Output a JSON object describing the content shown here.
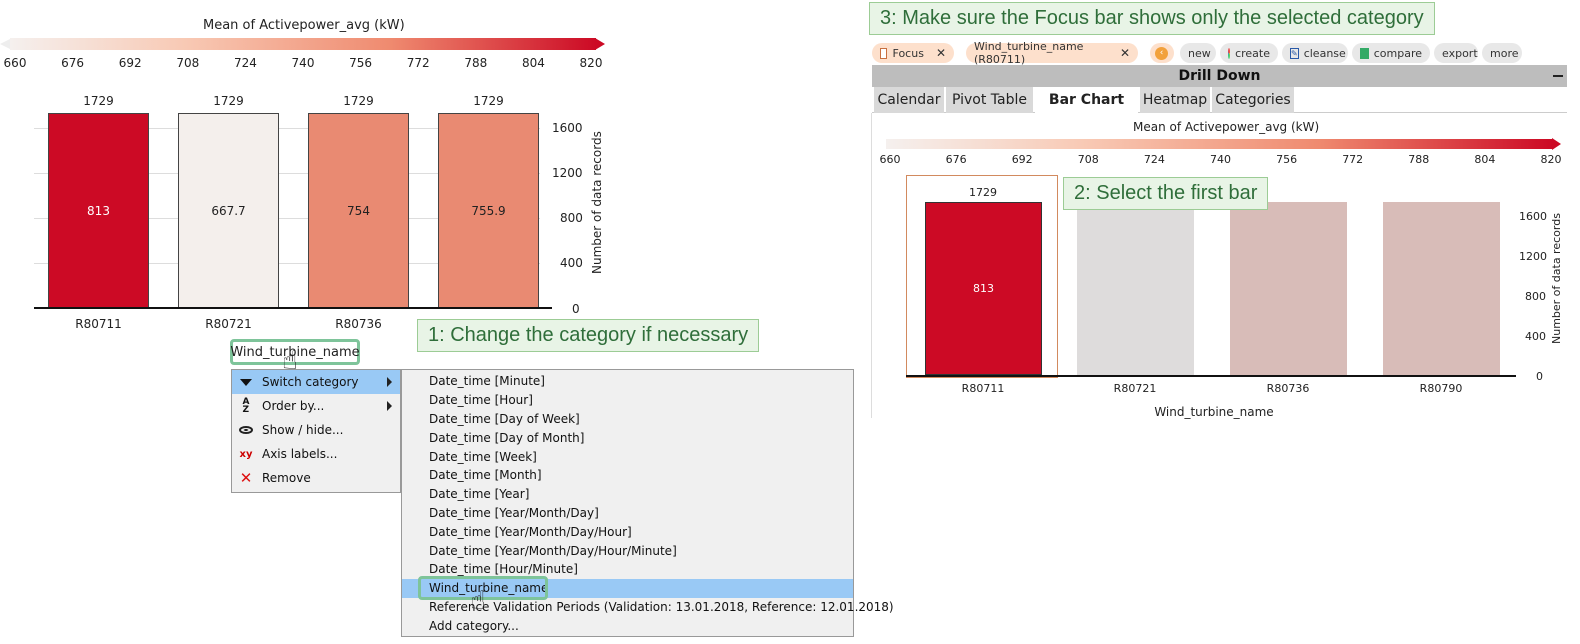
{
  "left_chart": {
    "colorbar_title": "Mean of Activepower_avg  (kW)",
    "colorbar_ticks": [
      "660",
      "676",
      "692",
      "708",
      "724",
      "740",
      "756",
      "772",
      "788",
      "804",
      "820"
    ],
    "y_ticks": [
      "1600",
      "1200",
      "800",
      "400",
      "0"
    ],
    "y_label": "Number of data records",
    "category_field": "Wind_turbine_name",
    "colors": {
      "high": "#cc0a25",
      "low": "#f4efec",
      "mid": "#e98a72"
    }
  },
  "chart_data": {
    "type": "bar",
    "categories": [
      "R80711",
      "R80721",
      "R80736",
      ""
    ],
    "values": [
      1729,
      1729,
      1729,
      1729
    ],
    "mean_labels": [
      "813",
      "667.7",
      "754",
      "755.9"
    ],
    "count_labels": [
      "1729",
      "1729",
      "1729",
      "1729"
    ],
    "xlabel": "",
    "ylabel": "Number of data records",
    "ylim": [
      0,
      1729
    ]
  },
  "context_menu": {
    "items": [
      {
        "label": "Switch category",
        "icon": "triangle-down-icon",
        "has_sub": true
      },
      {
        "label": "Order by...",
        "icon": "sort-az-icon",
        "has_sub": true
      },
      {
        "label": "Show / hide...",
        "icon": "eye-icon",
        "has_sub": false
      },
      {
        "label": "Axis labels...",
        "icon": "xy-axis-icon",
        "has_sub": false
      },
      {
        "label": "Remove",
        "icon": "red-x-icon",
        "has_sub": false
      }
    ],
    "submenu": [
      "Date_time [Minute]",
      "Date_time [Hour]",
      "Date_time [Day of Week]",
      "Date_time [Day of Month]",
      "Date_time [Week]",
      "Date_time [Month]",
      "Date_time [Year]",
      "Date_time [Year/Month/Day]",
      "Date_time [Year/Month/Day/Hour]",
      "Date_time [Year/Month/Day/Hour/Minute]",
      "Date_time [Hour/Minute]",
      "Wind_turbine_name",
      "Reference Validation Periods (Validation: 13.01.2018, Reference: 12.01.2018)",
      "Add category..."
    ]
  },
  "callouts": {
    "step1": "1: Change the category if necessary",
    "step2": "2: Select the first bar",
    "step3": "3: Make sure the Focus bar shows only the selected category"
  },
  "focus_bar": {
    "focus_label": "Focus",
    "chip_label": "Wind_turbine_name (R80711)",
    "buttons": [
      "new",
      "create",
      "cleanse",
      "compare",
      "export",
      "more"
    ]
  },
  "drill_down": {
    "title": "Drill Down",
    "tabs": [
      "Calendar",
      "Pivot Table",
      "Bar Chart",
      "Heatmap",
      "Categories"
    ],
    "active_tab": "Bar Chart",
    "colorbar_title": "Mean of Activepower_avg  (kW)",
    "colorbar_ticks": [
      "660",
      "676",
      "692",
      "708",
      "724",
      "740",
      "756",
      "772",
      "788",
      "804",
      "820"
    ],
    "y_ticks": [
      "1600",
      "1200",
      "800",
      "400",
      "0"
    ],
    "y_label": "Number of data records",
    "x_label": "Wind_turbine_name",
    "categories": [
      "R80711",
      "R80721",
      "R80736",
      "R80790"
    ],
    "first_count": "1729",
    "first_mean": "813"
  }
}
